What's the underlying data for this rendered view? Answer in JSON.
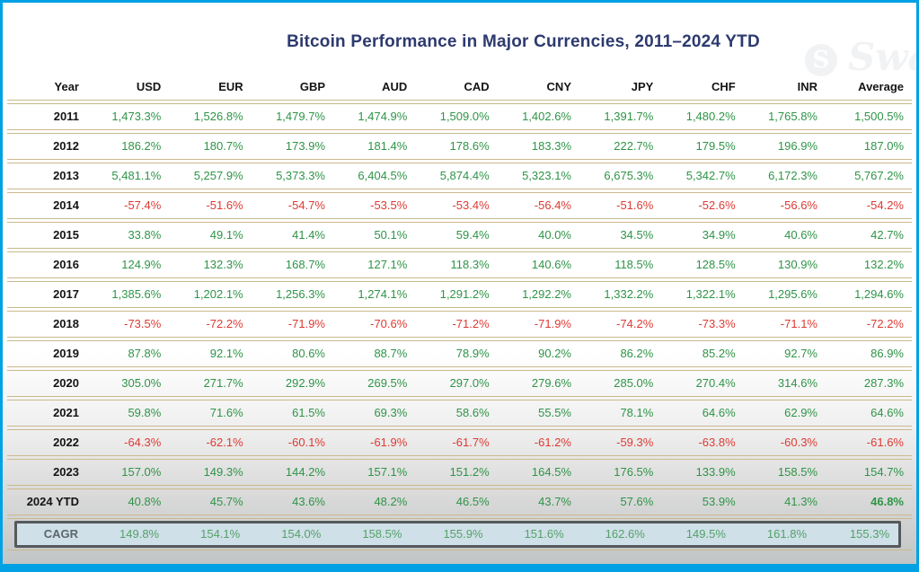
{
  "title": "Bitcoin Performance in Major Currencies, 2011–2024 YTD",
  "watermark": {
    "logo_letter": "S",
    "text": "Swa"
  },
  "colors": {
    "frame-blue": "#00a1e4",
    "navy": "#2d3a6e",
    "tan": "#c9b98c",
    "green": "#2e9447",
    "red": "#dd3a33",
    "cagr-bg": "#cfe0e8",
    "cagr-border": "#55595c",
    "cagr-green": "#54a169",
    "cagr-label": "#5d666b"
  },
  "chart_data": {
    "type": "table",
    "title": "Bitcoin Performance in Major Currencies, 2011–2024 YTD",
    "columns": [
      "Year",
      "USD",
      "EUR",
      "GBP",
      "AUD",
      "CAD",
      "CNY",
      "JPY",
      "CHF",
      "INR",
      "Average"
    ],
    "rows": [
      {
        "year": "2011",
        "values": [
          "1,473.3%",
          "1,526.8%",
          "1,479.7%",
          "1,474.9%",
          "1,509.0%",
          "1,402.6%",
          "1,391.7%",
          "1,480.2%",
          "1,765.8%",
          "1,500.5%"
        ]
      },
      {
        "year": "2012",
        "values": [
          "186.2%",
          "180.7%",
          "173.9%",
          "181.4%",
          "178.6%",
          "183.3%",
          "222.7%",
          "179.5%",
          "196.9%",
          "187.0%"
        ]
      },
      {
        "year": "2013",
        "values": [
          "5,481.1%",
          "5,257.9%",
          "5,373.3%",
          "6,404.5%",
          "5,874.4%",
          "5,323.1%",
          "6,675.3%",
          "5,342.7%",
          "6,172.3%",
          "5,767.2%"
        ]
      },
      {
        "year": "2014",
        "values": [
          "-57.4%",
          "-51.6%",
          "-54.7%",
          "-53.5%",
          "-53.4%",
          "-56.4%",
          "-51.6%",
          "-52.6%",
          "-56.6%",
          "-54.2%"
        ]
      },
      {
        "year": "2015",
        "values": [
          "33.8%",
          "49.1%",
          "41.4%",
          "50.1%",
          "59.4%",
          "40.0%",
          "34.5%",
          "34.9%",
          "40.6%",
          "42.7%"
        ]
      },
      {
        "year": "2016",
        "values": [
          "124.9%",
          "132.3%",
          "168.7%",
          "127.1%",
          "118.3%",
          "140.6%",
          "118.5%",
          "128.5%",
          "130.9%",
          "132.2%"
        ]
      },
      {
        "year": "2017",
        "values": [
          "1,385.6%",
          "1,202.1%",
          "1,256.3%",
          "1,274.1%",
          "1,291.2%",
          "1,292.2%",
          "1,332.2%",
          "1,322.1%",
          "1,295.6%",
          "1,294.6%"
        ]
      },
      {
        "year": "2018",
        "values": [
          "-73.5%",
          "-72.2%",
          "-71.9%",
          "-70.6%",
          "-71.2%",
          "-71.9%",
          "-74.2%",
          "-73.3%",
          "-71.1%",
          "-72.2%"
        ]
      },
      {
        "year": "2019",
        "values": [
          "87.8%",
          "92.1%",
          "80.6%",
          "88.7%",
          "78.9%",
          "90.2%",
          "86.2%",
          "85.2%",
          "92.7%",
          "86.9%"
        ]
      },
      {
        "year": "2020",
        "values": [
          "305.0%",
          "271.7%",
          "292.9%",
          "269.5%",
          "297.0%",
          "279.6%",
          "285.0%",
          "270.4%",
          "314.6%",
          "287.3%"
        ]
      },
      {
        "year": "2021",
        "values": [
          "59.8%",
          "71.6%",
          "61.5%",
          "69.3%",
          "58.6%",
          "55.5%",
          "78.1%",
          "64.6%",
          "62.9%",
          "64.6%"
        ]
      },
      {
        "year": "2022",
        "values": [
          "-64.3%",
          "-62.1%",
          "-60.1%",
          "-61.9%",
          "-61.7%",
          "-61.2%",
          "-59.3%",
          "-63.8%",
          "-60.3%",
          "-61.6%"
        ]
      },
      {
        "year": "2023",
        "values": [
          "157.0%",
          "149.3%",
          "144.2%",
          "157.1%",
          "151.2%",
          "164.5%",
          "176.5%",
          "133.9%",
          "158.5%",
          "154.7%"
        ]
      },
      {
        "year": "2024 YTD",
        "values": [
          "40.8%",
          "45.7%",
          "43.6%",
          "48.2%",
          "46.5%",
          "43.7%",
          "57.6%",
          "53.9%",
          "41.3%",
          "46.8%"
        ],
        "bold_value_index": 9
      }
    ],
    "footer_row": {
      "label": "CAGR",
      "values": [
        "149.8%",
        "154.1%",
        "154.0%",
        "158.5%",
        "155.9%",
        "151.6%",
        "162.6%",
        "149.5%",
        "161.8%",
        "155.3%"
      ]
    },
    "value_color_rule": "negative values red, positive values green"
  }
}
